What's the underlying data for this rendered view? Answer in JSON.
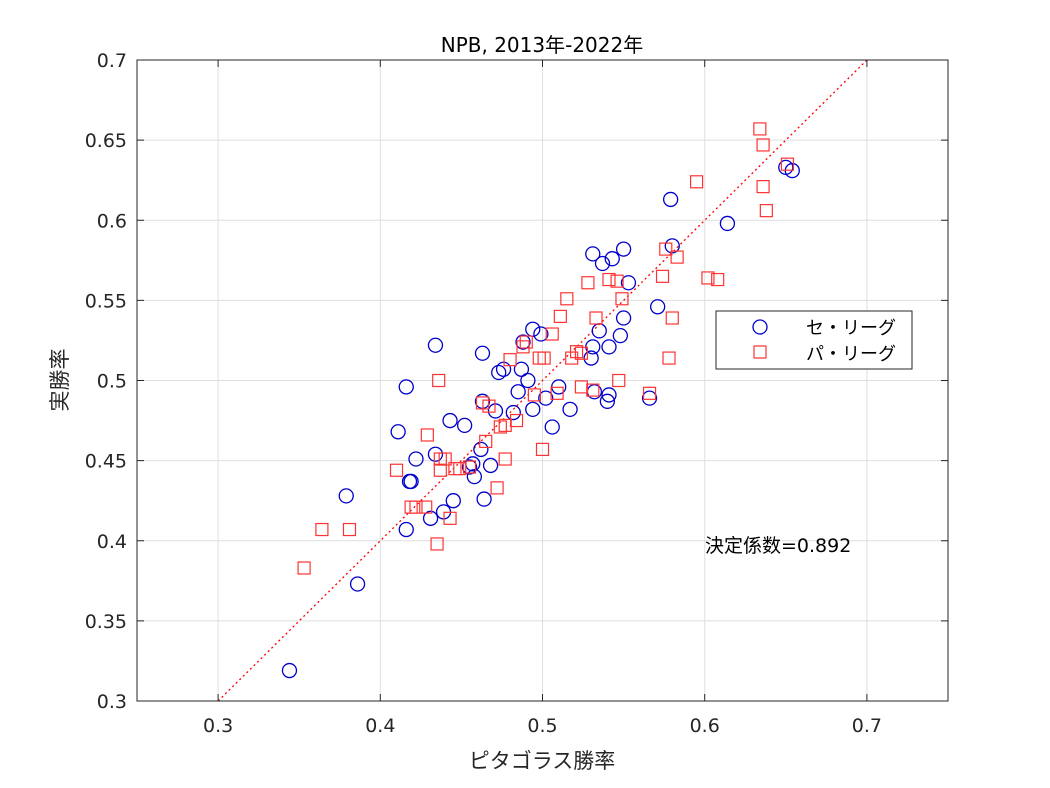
{
  "chart_data": {
    "type": "scatter",
    "title": "NPB, 2013年-2022年",
    "xlabel": "ピタゴラス勝率",
    "ylabel": "実勝率",
    "xlim": [
      0.25,
      0.75
    ],
    "ylim": [
      0.3,
      0.7
    ],
    "xticks": [
      "0.3",
      "0.4",
      "0.5",
      "0.6",
      "0.7"
    ],
    "yticks": [
      "0.3",
      "0.35",
      "0.4",
      "0.45",
      "0.5",
      "0.55",
      "0.6",
      "0.65",
      "0.7"
    ],
    "grid": true,
    "legend_position": "right",
    "annotation": "決定係数=0.892",
    "fit_line": {
      "style": "dotted",
      "color": "#ff0000",
      "points": [
        [
          0.3,
          0.3
        ],
        [
          0.7,
          0.7
        ]
      ]
    },
    "series": [
      {
        "name": "セ・リーグ",
        "marker": "circle",
        "color": "#0000cc",
        "points": [
          [
            0.344,
            0.319
          ],
          [
            0.386,
            0.373
          ],
          [
            0.379,
            0.428
          ],
          [
            0.411,
            0.468
          ],
          [
            0.416,
            0.407
          ],
          [
            0.418,
            0.437
          ],
          [
            0.419,
            0.437
          ],
          [
            0.416,
            0.496
          ],
          [
            0.422,
            0.451
          ],
          [
            0.431,
            0.414
          ],
          [
            0.434,
            0.454
          ],
          [
            0.434,
            0.522
          ],
          [
            0.439,
            0.418
          ],
          [
            0.443,
            0.475
          ],
          [
            0.445,
            0.425
          ],
          [
            0.452,
            0.472
          ],
          [
            0.455,
            0.446
          ],
          [
            0.457,
            0.448
          ],
          [
            0.458,
            0.44
          ],
          [
            0.462,
            0.457
          ],
          [
            0.463,
            0.517
          ],
          [
            0.463,
            0.487
          ],
          [
            0.464,
            0.426
          ],
          [
            0.468,
            0.447
          ],
          [
            0.471,
            0.481
          ],
          [
            0.473,
            0.505
          ],
          [
            0.476,
            0.507
          ],
          [
            0.482,
            0.48
          ],
          [
            0.485,
            0.493
          ],
          [
            0.487,
            0.507
          ],
          [
            0.488,
            0.524
          ],
          [
            0.491,
            0.5
          ],
          [
            0.494,
            0.482
          ],
          [
            0.494,
            0.532
          ],
          [
            0.499,
            0.529
          ],
          [
            0.502,
            0.489
          ],
          [
            0.506,
            0.471
          ],
          [
            0.51,
            0.496
          ],
          [
            0.517,
            0.482
          ],
          [
            0.53,
            0.514
          ],
          [
            0.531,
            0.521
          ],
          [
            0.531,
            0.579
          ],
          [
            0.532,
            0.493
          ],
          [
            0.535,
            0.531
          ],
          [
            0.537,
            0.573
          ],
          [
            0.54,
            0.487
          ],
          [
            0.541,
            0.491
          ],
          [
            0.541,
            0.521
          ],
          [
            0.543,
            0.576
          ],
          [
            0.548,
            0.528
          ],
          [
            0.55,
            0.582
          ],
          [
            0.55,
            0.539
          ],
          [
            0.553,
            0.561
          ],
          [
            0.566,
            0.489
          ],
          [
            0.571,
            0.546
          ],
          [
            0.579,
            0.613
          ],
          [
            0.58,
            0.584
          ],
          [
            0.614,
            0.598
          ],
          [
            0.65,
            0.633
          ],
          [
            0.654,
            0.631
          ]
        ]
      },
      {
        "name": "パ・リーグ",
        "marker": "square",
        "color": "#ff3333",
        "points": [
          [
            0.353,
            0.383
          ],
          [
            0.364,
            0.407
          ],
          [
            0.381,
            0.407
          ],
          [
            0.41,
            0.444
          ],
          [
            0.419,
            0.421
          ],
          [
            0.422,
            0.421
          ],
          [
            0.428,
            0.421
          ],
          [
            0.429,
            0.466
          ],
          [
            0.435,
            0.398
          ],
          [
            0.436,
            0.5
          ],
          [
            0.437,
            0.451
          ],
          [
            0.437,
            0.444
          ],
          [
            0.44,
            0.451
          ],
          [
            0.443,
            0.414
          ],
          [
            0.446,
            0.445
          ],
          [
            0.449,
            0.445
          ],
          [
            0.455,
            0.446
          ],
          [
            0.463,
            0.486
          ],
          [
            0.465,
            0.462
          ],
          [
            0.467,
            0.484
          ],
          [
            0.472,
            0.433
          ],
          [
            0.474,
            0.471
          ],
          [
            0.477,
            0.472
          ],
          [
            0.477,
            0.451
          ],
          [
            0.48,
            0.513
          ],
          [
            0.484,
            0.475
          ],
          [
            0.488,
            0.521
          ],
          [
            0.49,
            0.524
          ],
          [
            0.495,
            0.491
          ],
          [
            0.498,
            0.514
          ],
          [
            0.5,
            0.457
          ],
          [
            0.501,
            0.514
          ],
          [
            0.506,
            0.529
          ],
          [
            0.509,
            0.492
          ],
          [
            0.511,
            0.54
          ],
          [
            0.515,
            0.551
          ],
          [
            0.518,
            0.514
          ],
          [
            0.521,
            0.518
          ],
          [
            0.524,
            0.517
          ],
          [
            0.524,
            0.496
          ],
          [
            0.528,
            0.561
          ],
          [
            0.531,
            0.494
          ],
          [
            0.533,
            0.539
          ],
          [
            0.541,
            0.563
          ],
          [
            0.546,
            0.562
          ],
          [
            0.547,
            0.5
          ],
          [
            0.549,
            0.551
          ],
          [
            0.566,
            0.492
          ],
          [
            0.574,
            0.565
          ],
          [
            0.576,
            0.582
          ],
          [
            0.578,
            0.514
          ],
          [
            0.58,
            0.539
          ],
          [
            0.583,
            0.577
          ],
          [
            0.595,
            0.624
          ],
          [
            0.602,
            0.564
          ],
          [
            0.608,
            0.563
          ],
          [
            0.634,
            0.657
          ],
          [
            0.636,
            0.647
          ],
          [
            0.636,
            0.621
          ],
          [
            0.638,
            0.606
          ],
          [
            0.651,
            0.635
          ]
        ]
      }
    ]
  }
}
